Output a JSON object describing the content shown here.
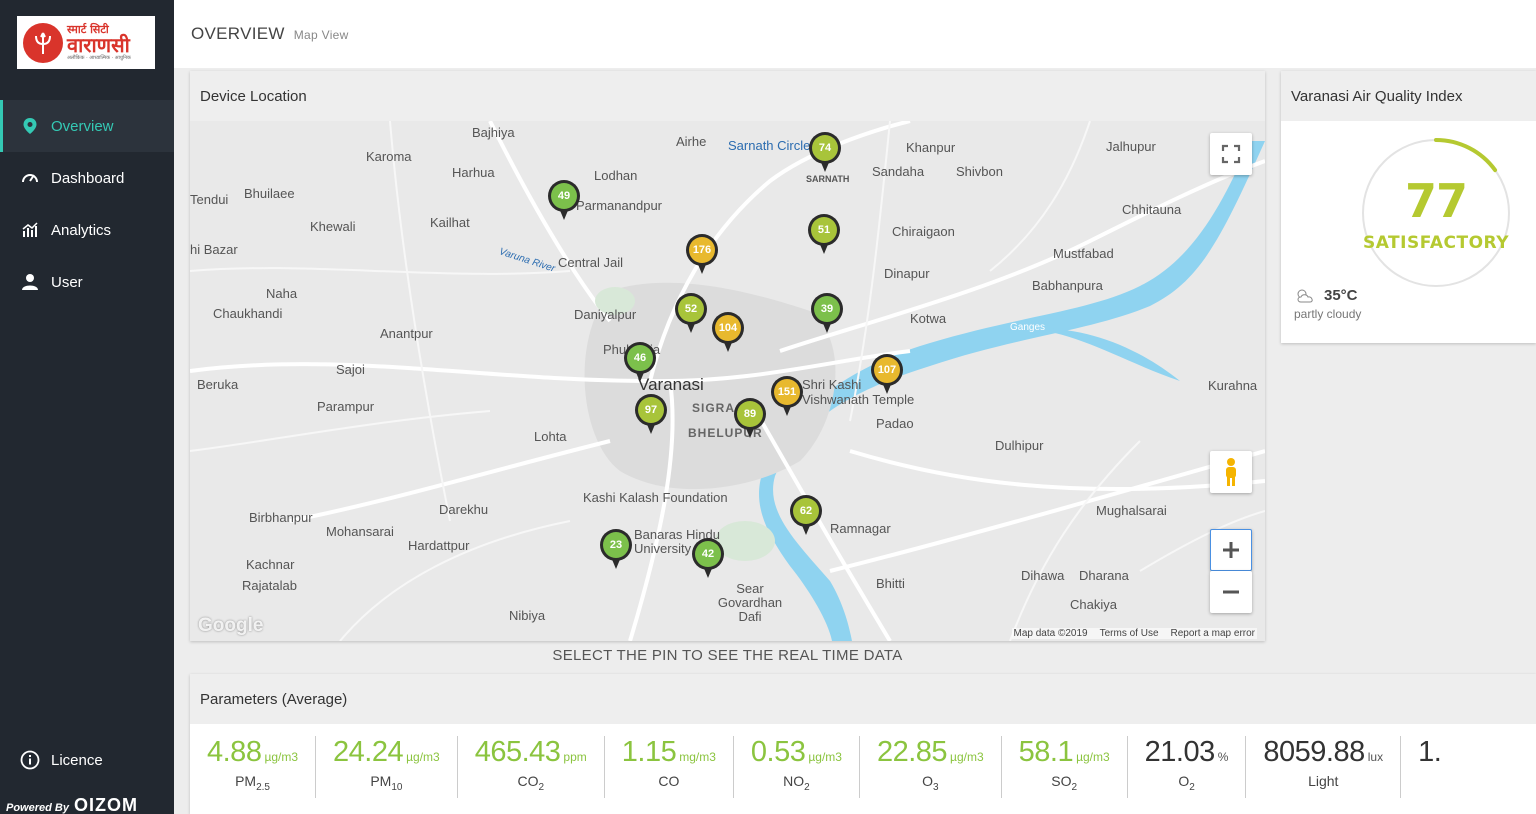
{
  "colors": {
    "accent": "#34c9b4",
    "sidebar_bg": "#222830",
    "good": "#8bc43f",
    "satisfactory_pin": "#a8c43a",
    "moderate_pin": "#e8b92e",
    "aqi_text": "#b5c931"
  },
  "logo": {
    "top": "स्मार्ट सिटी",
    "main": "वाराणसी",
    "sub": "अलौकिक · आध्यात्मिक · आधुनिक"
  },
  "sidebar": {
    "items": [
      {
        "label": "Overview",
        "icon": "location-pin-icon",
        "active": true
      },
      {
        "label": "Dashboard",
        "icon": "speedometer-icon",
        "active": false
      },
      {
        "label": "Analytics",
        "icon": "chart-icon",
        "active": false
      },
      {
        "label": "User",
        "icon": "user-icon",
        "active": false
      }
    ],
    "licence": "Licence",
    "powered_by": "Powered By",
    "brand": "OIZOM"
  },
  "header": {
    "title": "OVERVIEW",
    "subtitle": "Map View"
  },
  "map": {
    "title": "Device Location",
    "caption": "SELECT THE PIN TO SEE THE REAL TIME DATA",
    "attribution": {
      "data": "Map data ©2019",
      "terms": "Terms of Use",
      "report": "Report a map error"
    },
    "google": "Google",
    "places": [
      "Bajhiya",
      "Airhe",
      "Sarnath Circle",
      "Khanpur",
      "Jalhupur",
      "Karoma",
      "Harhua",
      "Lodhan",
      "Sandaha",
      "Shivbon",
      "Tendui",
      "Bhuilaee",
      "Parmanandpur",
      "Chhitauna",
      "Khewali",
      "Kailhat",
      "Chiraigaon",
      "hi Bazar",
      "Varuna River",
      "Central Jail",
      "Mustfabad",
      "Dinapur",
      "Babhanpura",
      "Naha",
      "Chaukhandi",
      "Daniyalpur",
      "Kotwa",
      "Anantpur",
      "Ganges",
      "Phulwaria",
      "Sajoi",
      "Varanasi",
      "Shri Kashi Vishwanath Temple",
      "Beruka",
      "Parampur",
      "SIGRA",
      "BHELUPUR",
      "Padao",
      "Kurahna",
      "Lohta",
      "Dulhipur",
      "Kashi Kalash Foundation",
      "Darekhu",
      "Birbhanpur",
      "Mohansarai",
      "Hardattpur",
      "Ramnagar",
      "Mughalsarai",
      "Banaras Hindu University",
      "Kachnar",
      "Rajatalab",
      "Sear Govardhan Dafi",
      "Bhitti",
      "Dihawa",
      "Dharana",
      "Chakiya",
      "Nibiya",
      "SARNATH"
    ],
    "pins": [
      {
        "value": "74",
        "level": "satisfactory"
      },
      {
        "value": "49",
        "level": "good"
      },
      {
        "value": "176",
        "level": "moderate"
      },
      {
        "value": "51",
        "level": "satisfactory"
      },
      {
        "value": "52",
        "level": "satisfactory"
      },
      {
        "value": "104",
        "level": "moderate"
      },
      {
        "value": "39",
        "level": "good"
      },
      {
        "value": "46",
        "level": "good"
      },
      {
        "value": "107",
        "level": "moderate"
      },
      {
        "value": "151",
        "level": "moderate"
      },
      {
        "value": "97",
        "level": "satisfactory"
      },
      {
        "value": "89",
        "level": "satisfactory"
      },
      {
        "value": "62",
        "level": "satisfactory"
      },
      {
        "value": "23",
        "level": "good"
      },
      {
        "value": "42",
        "level": "good"
      }
    ]
  },
  "aqi": {
    "title": "Varanasi Air Quality Index",
    "value": "77",
    "label": "SATISFACTORY",
    "temperature": "35°C",
    "weather": "partly cloudy",
    "gauge_fraction": 0.15
  },
  "parameters": {
    "title": "Parameters (Average)",
    "items": [
      {
        "value": "4.88",
        "unit": "µg/m3",
        "name": "PM",
        "sub": "2.5",
        "color": "green"
      },
      {
        "value": "24.24",
        "unit": "µg/m3",
        "name": "PM",
        "sub": "10",
        "color": "green"
      },
      {
        "value": "465.43",
        "unit": "ppm",
        "name": "CO",
        "sub": "2",
        "color": "green"
      },
      {
        "value": "1.15",
        "unit": "mg/m3",
        "name": "CO",
        "sub": "",
        "color": "green"
      },
      {
        "value": "0.53",
        "unit": "µg/m3",
        "name": "NO",
        "sub": "2",
        "color": "green"
      },
      {
        "value": "22.85",
        "unit": "µg/m3",
        "name": "O",
        "sub": "3",
        "color": "green"
      },
      {
        "value": "58.1",
        "unit": "µg/m3",
        "name": "SO",
        "sub": "2",
        "color": "green"
      },
      {
        "value": "21.03",
        "unit": "%",
        "name": "O",
        "sub": "2",
        "color": "dark"
      },
      {
        "value": "8059.88",
        "unit": "lux",
        "name": "Light",
        "sub": "",
        "color": "dark"
      },
      {
        "value": "1.",
        "unit": "",
        "name": "",
        "sub": "",
        "color": "dark"
      }
    ]
  }
}
